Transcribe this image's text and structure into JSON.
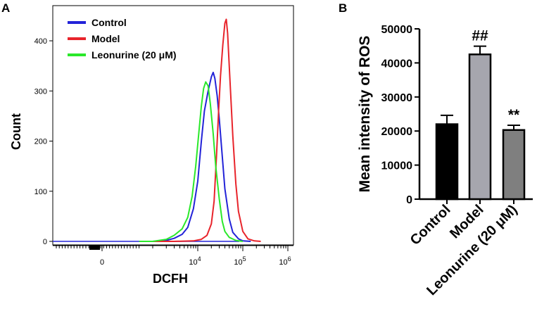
{
  "colors": {
    "control": "#2323d8",
    "model": "#e8242b",
    "leonurine": "#2ae82a",
    "bar_control": "#000000",
    "bar_model": "#a6a6ae",
    "bar_leonurine": "#7f7f7f"
  },
  "chart_data": [
    {
      "panel": "A",
      "type": "line",
      "xlabel": "DCFH",
      "ylabel": "Count",
      "x_scale": "log (biexponential)",
      "ylim": [
        0,
        450
      ],
      "y_ticks": [
        "0",
        "100",
        "200",
        "300",
        "400"
      ],
      "x_ticks": [
        {
          "label": "0",
          "value": 0
        },
        {
          "label": "10",
          "exp": "4",
          "value": 10000
        },
        {
          "label": "10",
          "exp": "5",
          "value": 100000
        },
        {
          "label": "10",
          "exp": "6",
          "value": 1000000
        }
      ],
      "legend_position": "top-left",
      "series": [
        {
          "name": "Control",
          "color_key": "control",
          "points": [
            [
              500,
              0
            ],
            [
              1000,
              0
            ],
            [
              2000,
              2
            ],
            [
              3000,
              6
            ],
            [
              4500,
              14
            ],
            [
              6000,
              28
            ],
            [
              8000,
              65
            ],
            [
              10000,
              120
            ],
            [
              12000,
              200
            ],
            [
              14000,
              260
            ],
            [
              17000,
              300
            ],
            [
              20000,
              328
            ],
            [
              22000,
              337
            ],
            [
              24000,
              325
            ],
            [
              27000,
              290
            ],
            [
              30000,
              245
            ],
            [
              35000,
              170
            ],
            [
              40000,
              105
            ],
            [
              50000,
              45
            ],
            [
              60000,
              18
            ],
            [
              80000,
              5
            ],
            [
              100000,
              1
            ],
            [
              150000,
              0
            ]
          ]
        },
        {
          "name": "Model",
          "color_key": "model",
          "points": [
            [
              1000,
              0
            ],
            [
              3000,
              0
            ],
            [
              8000,
              1
            ],
            [
              12000,
              4
            ],
            [
              16000,
              12
            ],
            [
              20000,
              35
            ],
            [
              23000,
              80
            ],
            [
              26000,
              170
            ],
            [
              29000,
              260
            ],
            [
              32000,
              330
            ],
            [
              36000,
              392
            ],
            [
              40000,
              435
            ],
            [
              43000,
              443
            ],
            [
              46000,
              415
            ],
            [
              52000,
              320
            ],
            [
              60000,
              210
            ],
            [
              70000,
              115
            ],
            [
              80000,
              60
            ],
            [
              100000,
              20
            ],
            [
              130000,
              5
            ],
            [
              180000,
              1
            ],
            [
              250000,
              0
            ]
          ]
        },
        {
          "name": "Leonurine (20 μM)",
          "color_key": "leonurine",
          "points": [
            [
              500,
              0
            ],
            [
              1000,
              0
            ],
            [
              2000,
              4
            ],
            [
              3000,
              12
            ],
            [
              4500,
              25
            ],
            [
              6000,
              48
            ],
            [
              7500,
              90
            ],
            [
              9000,
              150
            ],
            [
              10500,
              215
            ],
            [
              12000,
              270
            ],
            [
              13500,
              305
            ],
            [
              15000,
              318
            ],
            [
              17000,
              310
            ],
            [
              19000,
              275
            ],
            [
              22000,
              215
            ],
            [
              25000,
              150
            ],
            [
              30000,
              85
            ],
            [
              35000,
              40
            ],
            [
              40000,
              20
            ],
            [
              50000,
              8
            ],
            [
              70000,
              2
            ],
            [
              100000,
              0
            ]
          ]
        }
      ]
    },
    {
      "panel": "B",
      "type": "bar",
      "ylabel": "Mean intensity of ROS",
      "ylim": [
        0,
        50000
      ],
      "y_ticks": [
        "0",
        "10000",
        "20000",
        "30000",
        "40000",
        "50000"
      ],
      "categories": [
        "Control",
        "Model",
        "Leonurine (20 μM)"
      ],
      "values": [
        22000,
        42500,
        20300
      ],
      "errors": [
        2600,
        2400,
        1400
      ],
      "annotations": [
        "",
        "##",
        "**"
      ],
      "color_keys": [
        "bar_control",
        "bar_model",
        "bar_leonurine"
      ]
    }
  ]
}
